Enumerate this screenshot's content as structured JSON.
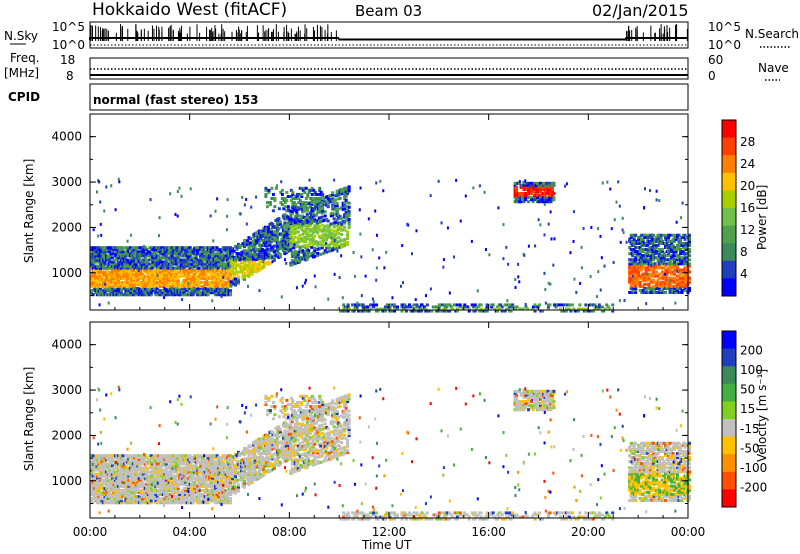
{
  "header": {
    "title": "Hokkaido West (fitACF)",
    "beam": "Beam 03",
    "date": "02/Jan/2015"
  },
  "side_labels": {
    "nsky": "N.Sky",
    "freq": "Freq.",
    "mhz": "[MHz]",
    "cpid": "CPID",
    "nsearch": "N.Search",
    "nave": "Nave"
  },
  "top_axes": {
    "noise_left_ticks": [
      "10^5",
      "10^0"
    ],
    "noise_right_ticks": [
      "10^5",
      "10^0"
    ],
    "freq_left_ticks": [
      "18",
      "8"
    ],
    "nave_right_ticks": [
      "60",
      "0"
    ]
  },
  "cpid_text": "normal (fast stereo) 153",
  "colors": {
    "power_scale": [
      "#0000ff",
      "#1f3fbf",
      "#3a8a5a",
      "#4fa04a",
      "#6ec04a",
      "#a8d000",
      "#ffc000",
      "#ff8000",
      "#ff4000",
      "#ff0000"
    ],
    "velocity_scale": [
      "#0000ff",
      "#1f3fbf",
      "#3a8a5a",
      "#40b040",
      "#80d020",
      "#c0c0c0",
      "#ffc000",
      "#ff9000",
      "#ff5000",
      "#ff0000"
    ]
  },
  "chart_data": [
    {
      "type": "heatmap",
      "name": "power",
      "ylabel": "Slant Range [km]",
      "xlabel": "",
      "ylim": [
        180,
        4500
      ],
      "xlim": [
        "00:00",
        "24:00"
      ],
      "y_ticks": [
        "1000",
        "2000",
        "3000",
        "4000"
      ],
      "colorbar": {
        "label": "Power [dB]",
        "ticks": [
          "4",
          "8",
          "12",
          "16",
          "20",
          "24",
          "28"
        ],
        "range": [
          0,
          30
        ]
      }
    },
    {
      "type": "heatmap",
      "name": "velocity",
      "ylabel": "Slant Range [km]",
      "xlabel": "Time UT",
      "ylim": [
        180,
        4500
      ],
      "x_ticks": [
        "00:00",
        "04:00",
        "08:00",
        "12:00",
        "16:00",
        "20:00",
        "00:00"
      ],
      "y_ticks": [
        "1000",
        "2000",
        "3000",
        "4000"
      ],
      "colorbar": {
        "label": "Velocity [m s⁻¹]",
        "ticks": [
          "200",
          "100",
          "50",
          "15",
          "-15",
          "-50",
          "-100",
          "-200"
        ],
        "range": [
          -250,
          250
        ]
      }
    }
  ]
}
